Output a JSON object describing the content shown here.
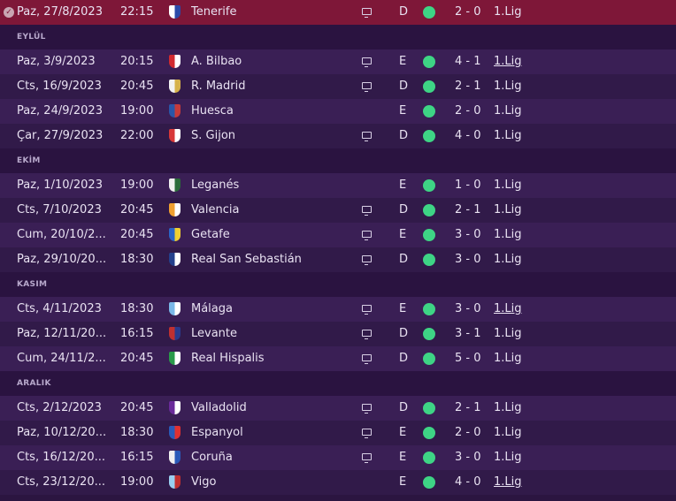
{
  "rows": [
    {
      "kind": "match",
      "style": "selected",
      "check": true,
      "date": "Paz, 27/8/2023",
      "time": "22:15",
      "crest_color": "#ffffff",
      "crest_accent": "#2b4aa8",
      "team": "Tenerife",
      "tv": true,
      "venue": "D",
      "score": "2 - 0",
      "comp": "1.Lig",
      "comp_link": false
    },
    {
      "kind": "month",
      "label": "EYLÜL"
    },
    {
      "kind": "match",
      "style": "alt",
      "date": "Paz, 3/9/2023",
      "time": "20:15",
      "crest_color": "#d12a2f",
      "crest_accent": "#ffffff",
      "team": "A. Bilbao",
      "tv": true,
      "venue": "E",
      "score": "4 - 1",
      "comp": "1.Lig",
      "comp_link": true
    },
    {
      "kind": "match",
      "style": "plain",
      "date": "Cts, 16/9/2023",
      "time": "20:45",
      "crest_color": "#f2f2f2",
      "crest_accent": "#d6b24a",
      "team": "R. Madrid",
      "tv": true,
      "venue": "D",
      "score": "2 - 1",
      "comp": "1.Lig",
      "comp_link": false
    },
    {
      "kind": "match",
      "style": "alt",
      "date": "Paz, 24/9/2023",
      "time": "19:00",
      "crest_color": "#2a56a8",
      "crest_accent": "#c63a3a",
      "team": "Huesca",
      "tv": false,
      "venue": "E",
      "score": "2 - 0",
      "comp": "1.Lig",
      "comp_link": false
    },
    {
      "kind": "match",
      "style": "plain",
      "date": "Çar, 27/9/2023",
      "time": "22:00",
      "crest_color": "#d83838",
      "crest_accent": "#ffffff",
      "team": "S. Gijon",
      "tv": true,
      "venue": "D",
      "score": "4 - 0",
      "comp": "1.Lig",
      "comp_link": false
    },
    {
      "kind": "month",
      "label": "EKİM"
    },
    {
      "kind": "match",
      "style": "alt",
      "date": "Paz, 1/10/2023",
      "time": "19:00",
      "crest_color": "#f0f0f0",
      "crest_accent": "#2a6b3a",
      "team": "Leganés",
      "tv": false,
      "venue": "E",
      "score": "1 - 0",
      "comp": "1.Lig",
      "comp_link": false
    },
    {
      "kind": "match",
      "style": "plain",
      "date": "Cts, 7/10/2023",
      "time": "20:45",
      "crest_color": "#f0a030",
      "crest_accent": "#ffffff",
      "team": "Valencia",
      "tv": true,
      "venue": "D",
      "score": "2 - 1",
      "comp": "1.Lig",
      "comp_link": false
    },
    {
      "kind": "match",
      "style": "alt",
      "date": "Cum, 20/10/2...",
      "time": "20:45",
      "crest_color": "#2a66c8",
      "crest_accent": "#f0d030",
      "team": "Getafe",
      "tv": true,
      "venue": "E",
      "score": "3 - 0",
      "comp": "1.Lig",
      "comp_link": false
    },
    {
      "kind": "match",
      "style": "plain",
      "date": "Paz, 29/10/20...",
      "time": "18:30",
      "crest_color": "#24408c",
      "crest_accent": "#ffffff",
      "team": "Real San Sebastián",
      "tv": true,
      "venue": "D",
      "score": "3 - 0",
      "comp": "1.Lig",
      "comp_link": false
    },
    {
      "kind": "month",
      "label": "KASIM"
    },
    {
      "kind": "match",
      "style": "alt",
      "date": "Cts, 4/11/2023",
      "time": "18:30",
      "crest_color": "#7ab8e8",
      "crest_accent": "#ffffff",
      "team": "Málaga",
      "tv": true,
      "venue": "E",
      "score": "3 - 0",
      "comp": "1.Lig",
      "comp_link": true
    },
    {
      "kind": "match",
      "style": "plain",
      "date": "Paz, 12/11/20...",
      "time": "16:15",
      "crest_color": "#c03030",
      "crest_accent": "#2a3a8c",
      "team": "Levante",
      "tv": true,
      "venue": "D",
      "score": "3 - 1",
      "comp": "1.Lig",
      "comp_link": false
    },
    {
      "kind": "match",
      "style": "alt",
      "date": "Cum, 24/11/2...",
      "time": "20:45",
      "crest_color": "#2a9a4a",
      "crest_accent": "#ffffff",
      "team": "Real Hispalis",
      "tv": true,
      "venue": "D",
      "score": "5 - 0",
      "comp": "1.Lig",
      "comp_link": false
    },
    {
      "kind": "month",
      "label": "ARALIK"
    },
    {
      "kind": "match",
      "style": "alt",
      "date": "Cts, 2/12/2023",
      "time": "20:45",
      "crest_color": "#6a2a9a",
      "crest_accent": "#ffffff",
      "team": "Valladolid",
      "tv": true,
      "venue": "D",
      "score": "2 - 1",
      "comp": "1.Lig",
      "comp_link": false
    },
    {
      "kind": "match",
      "style": "plain",
      "date": "Paz, 10/12/20...",
      "time": "18:30",
      "crest_color": "#2a5ab8",
      "crest_accent": "#e03030",
      "team": "Espanyol",
      "tv": true,
      "venue": "E",
      "score": "2 - 0",
      "comp": "1.Lig",
      "comp_link": false
    },
    {
      "kind": "match",
      "style": "alt",
      "date": "Cts, 16/12/20...",
      "time": "16:15",
      "crest_color": "#f0f0f0",
      "crest_accent": "#2a5ab8",
      "team": "Coruña",
      "tv": true,
      "venue": "E",
      "score": "3 - 0",
      "comp": "1.Lig",
      "comp_link": false
    },
    {
      "kind": "match",
      "style": "plain",
      "date": "Cts, 23/12/20...",
      "time": "19:00",
      "crest_color": "#9ad0f0",
      "crest_accent": "#c03030",
      "team": "Vigo",
      "tv": false,
      "venue": "E",
      "score": "4 - 0",
      "comp": "1.Lig",
      "comp_link": true
    }
  ],
  "colors": {
    "result_win": "#3ed485",
    "selected_row": "#7e1738"
  }
}
